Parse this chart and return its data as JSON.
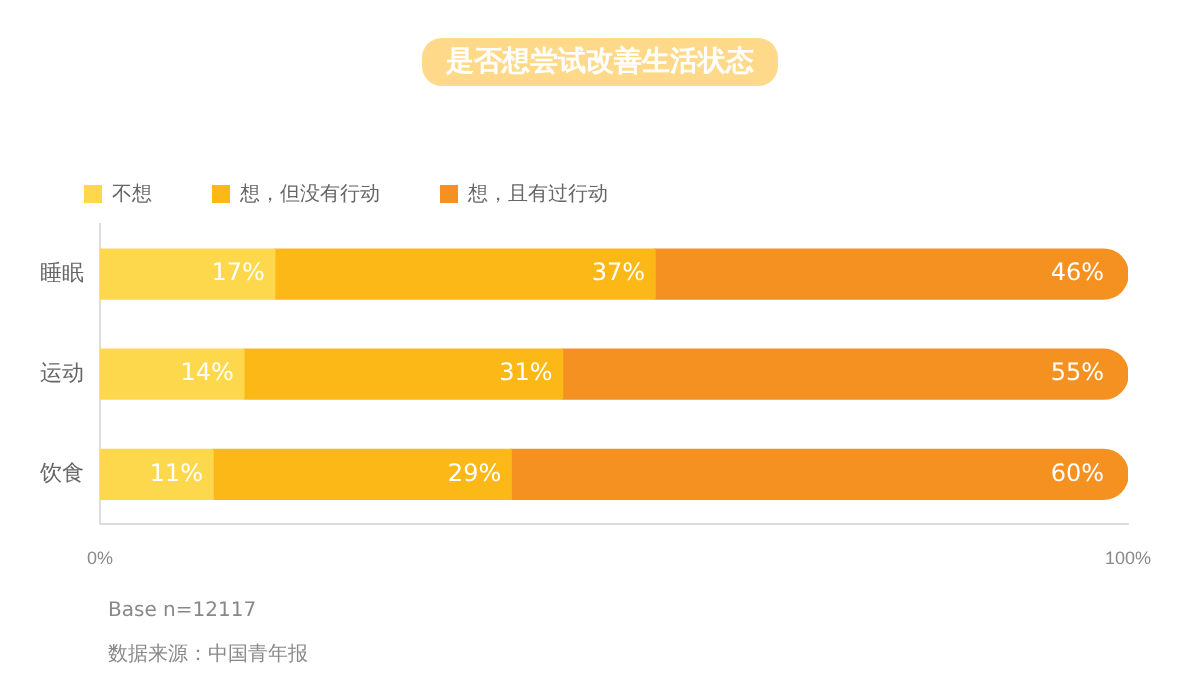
{
  "chart_data": {
    "type": "bar",
    "orientation": "horizontal",
    "stacked": true,
    "title": "是否想尝试改善生活状态",
    "categories": [
      "睡眠",
      "运动",
      "饮食"
    ],
    "series": [
      {
        "name": "不想",
        "color": "#fed84c",
        "values": [
          17,
          14,
          11
        ],
        "value_labels": [
          "17%",
          "14%",
          "11%"
        ]
      },
      {
        "name": "想，但没有行动",
        "color": "#fbb817",
        "values": [
          37,
          31,
          29
        ],
        "value_labels": [
          "37%",
          "31%",
          "29%"
        ]
      },
      {
        "name": "想，且有过行动",
        "color": "#f59121",
        "values": [
          46,
          55,
          60
        ],
        "value_labels": [
          "46%",
          "55%",
          "60%"
        ]
      }
    ],
    "xlim": [
      0,
      100
    ],
    "xticks": [
      {
        "value": 0,
        "label": "0%"
      },
      {
        "value": 100,
        "label": "100%"
      }
    ],
    "grid": false,
    "legend": "top left",
    "annotations": [
      "Base n=12117",
      "数据来源：中国青年报"
    ]
  }
}
